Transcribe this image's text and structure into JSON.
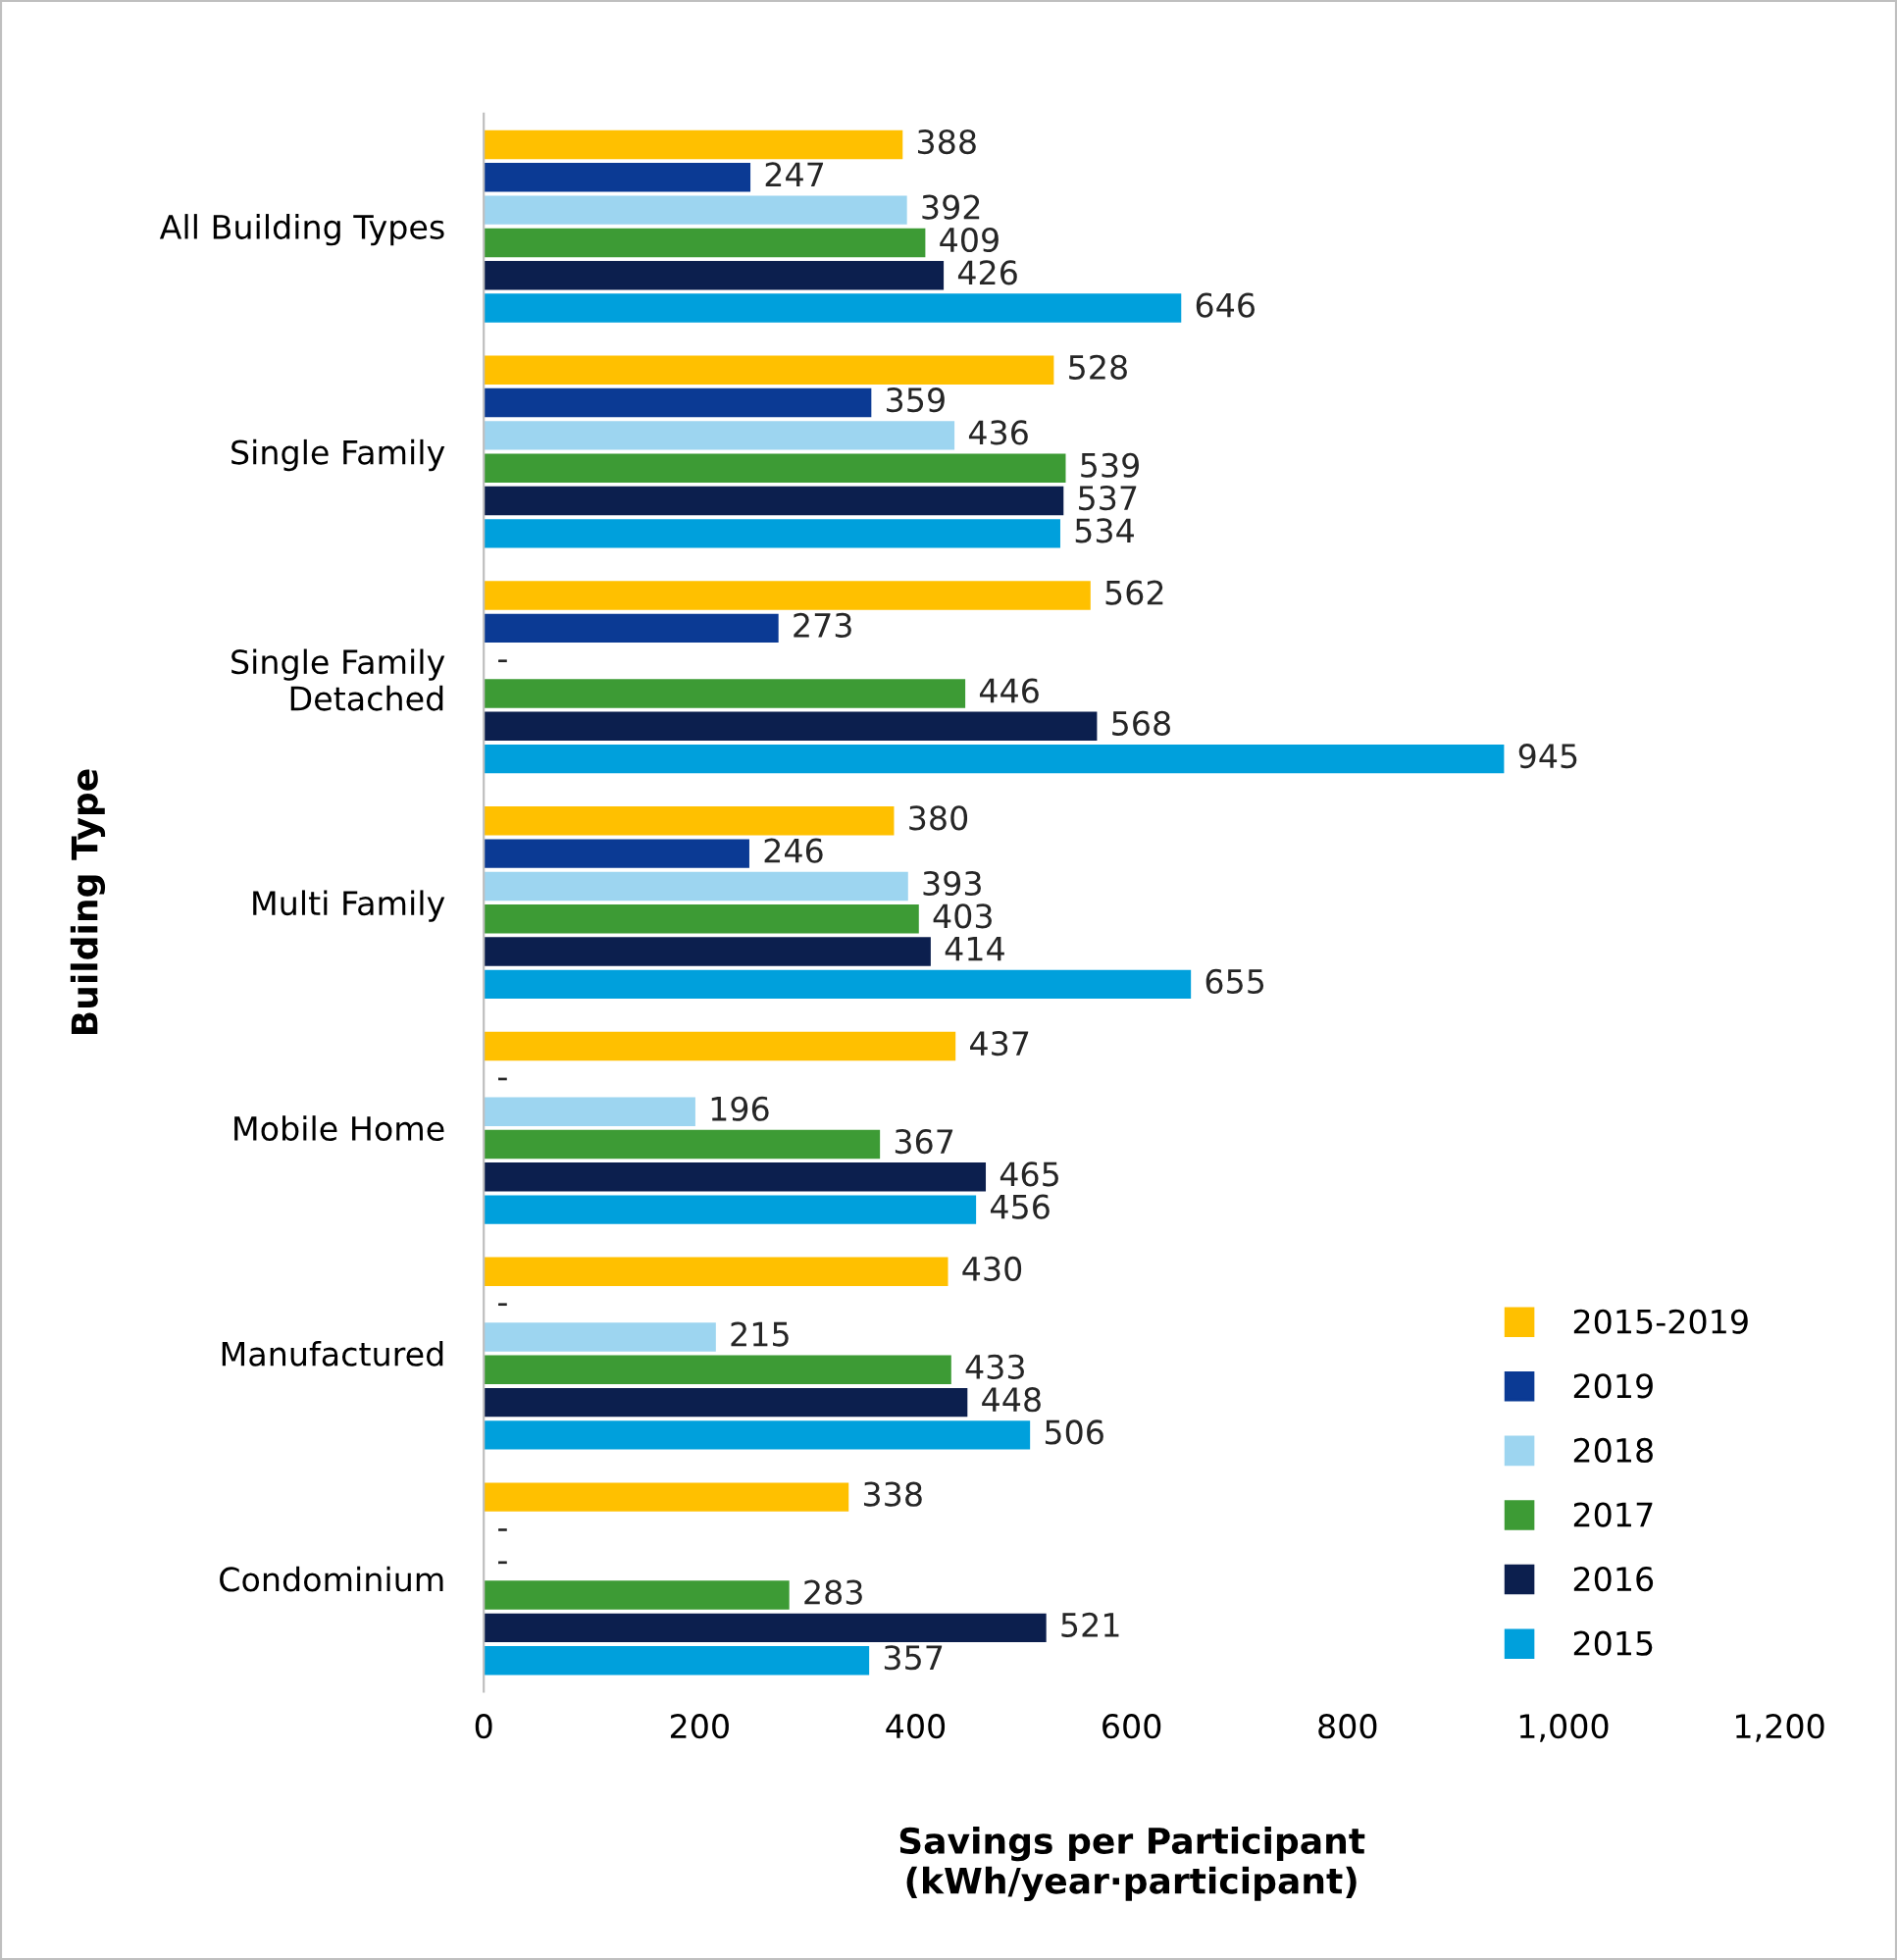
{
  "chart_data": {
    "type": "bar",
    "orientation": "horizontal",
    "ylabel": "Building Type",
    "xlabel": "Savings per Participant\n(kWh/year·participant)",
    "categories": [
      "All Building Types",
      "Single Family",
      "Single Family\nDetached",
      "Multi Family",
      "Mobile Home",
      "Manufactured",
      "Condominium"
    ],
    "series": [
      {
        "name": "2015-2019",
        "color": "#ffc000",
        "values": [
          388,
          528,
          562,
          380,
          437,
          430,
          338
        ],
        "value_labels": [
          "388",
          "528",
          "562",
          "380",
          "437",
          "430",
          "338"
        ]
      },
      {
        "name": "2019",
        "color": "#0b3a94",
        "values": [
          247,
          359,
          273,
          246,
          null,
          null,
          null
        ],
        "value_labels": [
          "247",
          "359",
          "273",
          "246",
          "-",
          "-",
          "-"
        ]
      },
      {
        "name": "2018",
        "color": "#9dd5f0",
        "values": [
          392,
          436,
          null,
          393,
          196,
          215,
          null
        ],
        "value_labels": [
          "392",
          "436",
          "-",
          "393",
          "196",
          "215",
          "-"
        ]
      },
      {
        "name": "2017",
        "color": "#3d9b35",
        "values": [
          409,
          539,
          446,
          403,
          367,
          433,
          283
        ],
        "value_labels": [
          "409",
          "539",
          "446",
          "403",
          "367",
          "433",
          "283"
        ]
      },
      {
        "name": "2016",
        "color": "#0c1f4e",
        "values": [
          426,
          537,
          568,
          414,
          465,
          448,
          521
        ],
        "value_labels": [
          "426",
          "537",
          "568",
          "414",
          "465",
          "448",
          "521"
        ]
      },
      {
        "name": "2015",
        "color": "#00a0dc",
        "values": [
          646,
          534,
          945,
          655,
          456,
          506,
          357
        ],
        "value_labels": [
          "646",
          "534",
          "945",
          "655",
          "456",
          "506",
          "357"
        ]
      }
    ],
    "xlim": [
      0,
      1200
    ],
    "xticks": [
      0,
      200,
      400,
      600,
      800,
      {
        "value": 1000,
        "label": "1,000"
      },
      {
        "value": 1200,
        "label": "1,200"
      }
    ],
    "legend": "bottom right",
    "grid": false
  }
}
